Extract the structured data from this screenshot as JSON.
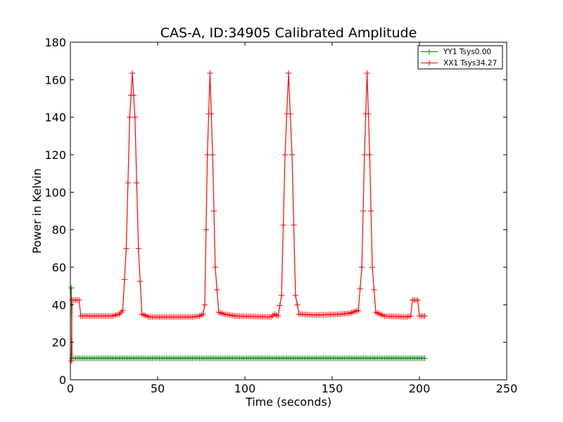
{
  "chart_data": {
    "type": "line",
    "title": "CAS-A, ID:34905 Calibrated Amplitude",
    "xlabel": "Time (seconds)",
    "ylabel": "Power in Kelvin",
    "xlim": [
      0,
      250
    ],
    "ylim": [
      0,
      180
    ],
    "xticks": [
      "0",
      "50",
      "100",
      "150",
      "200",
      "250"
    ],
    "yticks": [
      "0",
      "20",
      "40",
      "60",
      "80",
      "100",
      "120",
      "140",
      "160",
      "180"
    ],
    "grid": false,
    "legend_position": "top-right",
    "marker": "plus",
    "series": [
      {
        "name": "YY1 Tsys0.00",
        "color": "#008000",
        "points": [
          [
            0.5,
            49
          ],
          [
            1,
            11.5
          ],
          [
            203,
            11.5
          ]
        ]
      },
      {
        "name": "XX1 Tsys34.27",
        "color": "#ff0000",
        "points": [
          [
            0.5,
            10
          ],
          [
            1,
            42.5
          ],
          [
            5,
            42.5
          ],
          [
            6,
            34
          ],
          [
            24,
            34
          ],
          [
            28,
            35
          ],
          [
            30,
            37
          ],
          [
            32,
            70
          ],
          [
            34,
            140
          ],
          [
            35.5,
            163.5
          ],
          [
            37,
            140
          ],
          [
            39,
            70
          ],
          [
            41,
            35
          ],
          [
            45,
            33.5
          ],
          [
            70,
            33.5
          ],
          [
            74,
            34
          ],
          [
            76,
            35
          ],
          [
            77,
            40
          ],
          [
            78.5,
            120
          ],
          [
            80,
            163.5
          ],
          [
            81.5,
            120
          ],
          [
            83,
            60
          ],
          [
            85,
            36
          ],
          [
            88,
            35
          ],
          [
            95,
            34
          ],
          [
            115,
            33.5
          ],
          [
            117,
            35
          ],
          [
            119,
            34
          ],
          [
            121,
            45
          ],
          [
            123,
            120
          ],
          [
            125,
            163.5
          ],
          [
            127,
            120
          ],
          [
            129,
            45
          ],
          [
            131,
            35
          ],
          [
            140,
            34.5
          ],
          [
            155,
            35
          ],
          [
            160,
            35.5
          ],
          [
            165,
            37
          ],
          [
            167,
            60
          ],
          [
            168.5,
            120
          ],
          [
            170,
            163.5
          ],
          [
            171.5,
            120
          ],
          [
            173,
            60
          ],
          [
            175,
            36
          ],
          [
            180,
            34
          ],
          [
            193,
            33.5
          ],
          [
            195,
            34
          ],
          [
            196,
            42.5
          ],
          [
            199,
            42.5
          ],
          [
            200,
            34
          ],
          [
            203,
            34
          ]
        ]
      }
    ]
  }
}
